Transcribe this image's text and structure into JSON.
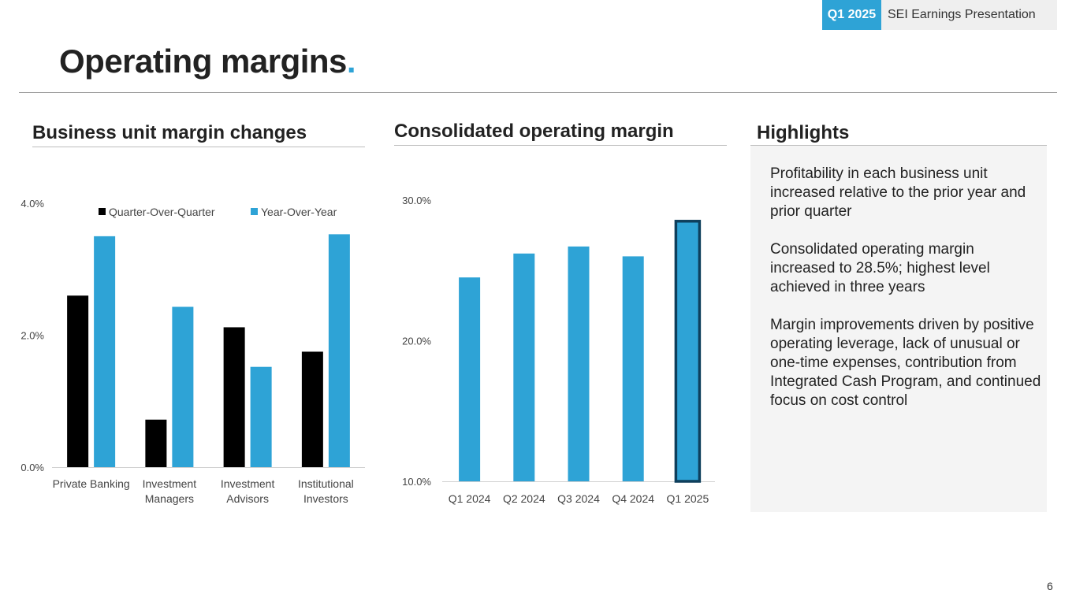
{
  "badge": {
    "quarter": "Q1 2025",
    "title": "SEI Earnings Presentation"
  },
  "page": {
    "title": "Operating margins",
    "title_dot": ".",
    "number": "6"
  },
  "colors": {
    "black": "#000000",
    "blue": "#2ea3d6",
    "highlight_border": "#0e3f5c"
  },
  "sections": {
    "left": "Business unit margin changes",
    "middle": "Consolidated operating margin",
    "right": "Highlights"
  },
  "highlights": [
    "Profitability in each business unit increased relative to the prior year and prior quarter",
    "Consolidated operating margin increased to 28.5%; highest level achieved in three years",
    "Margin improvements driven by positive operating leverage, lack of unusual or one-time expenses, contribution from Integrated Cash Program, and continued focus on cost control"
  ],
  "chart_data": [
    {
      "type": "bar",
      "title": "Business unit margin changes",
      "categories": [
        [
          "Private Banking"
        ],
        [
          "Investment",
          "Managers"
        ],
        [
          "Investment",
          "Advisors"
        ],
        [
          "Institutional",
          "Investors"
        ]
      ],
      "series": [
        {
          "name": "Quarter-Over-Quarter",
          "color": "#000000",
          "values": [
            2.6,
            0.72,
            2.12,
            1.75
          ]
        },
        {
          "name": "Year-Over-Year",
          "color": "#2ea3d6",
          "values": [
            3.5,
            2.43,
            1.52,
            3.53
          ]
        }
      ],
      "yticks": [
        "0.0%",
        "2.0%",
        "4.0%"
      ],
      "ylim": [
        0,
        4
      ],
      "legend": "top"
    },
    {
      "type": "bar",
      "title": "Consolidated operating margin",
      "categories": [
        "Q1 2024",
        "Q2 2024",
        "Q3 2024",
        "Q4 2024",
        "Q1 2025"
      ],
      "values": [
        24.5,
        26.2,
        26.7,
        26.0,
        28.5
      ],
      "highlighted_index": 4,
      "yticks": [
        "10.0%",
        "20.0%",
        "30.0%"
      ],
      "ylim": [
        10,
        30
      ]
    }
  ]
}
